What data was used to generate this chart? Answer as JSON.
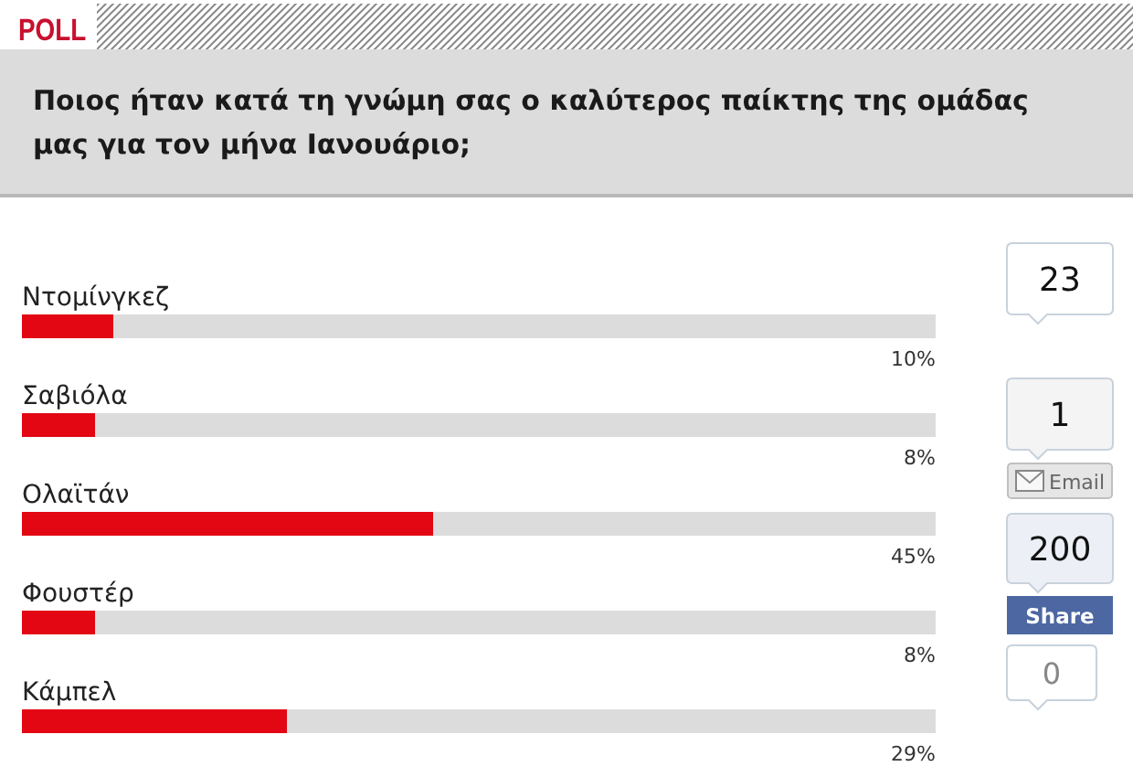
{
  "chart_data": [
    {
      "type": "bar",
      "orientation": "horizontal",
      "title": "Ποιος ήταν κατά τη γνώμη σας ο καλύτερος παίκτης της ομάδας μας για τον μήνα Ιανουάριο;",
      "annotations": [
        "POLL"
      ],
      "categories": [
        "Ντομίνγκεζ",
        "Σαβιόλα",
        "Ολαϊτάν",
        "Φουστέρ",
        "Κάμπελ"
      ],
      "values": [
        10,
        8,
        45,
        8,
        29
      ],
      "value_labels": [
        "10%",
        "8%",
        "45%",
        "8%",
        "29%"
      ],
      "color": "#e30613",
      "xlim": [
        0,
        100
      ],
      "tick_labels": "y"
    },
    {
      "type": "other",
      "annotations": [
        "23",
        "1",
        "Email",
        "200",
        "Share",
        "0"
      ]
    }
  ]
}
